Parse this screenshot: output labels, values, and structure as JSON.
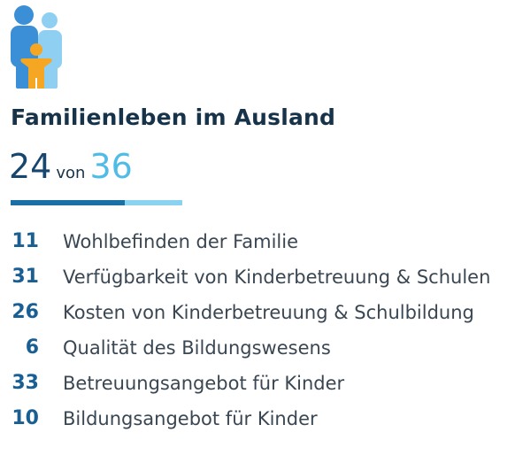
{
  "category": {
    "title": "Familienleben im Ausland",
    "icon": "family-icon",
    "rank": "24",
    "of_label": "von",
    "total": "36",
    "progress_fraction": 0.667
  },
  "items": [
    {
      "rank": "11",
      "label": "Wohlbefinden der Familie"
    },
    {
      "rank": "31",
      "label": "Verfügbarkeit von Kinderbetreuung & Schulen"
    },
    {
      "rank": "26",
      "label": "Kosten von Kinderbetreuung & Schulbildung"
    },
    {
      "rank": "6",
      "label": "Qualität des Bildungswesens"
    },
    {
      "rank": "33",
      "label": "Betreuungsangebot für Kinder"
    },
    {
      "rank": "10",
      "label": "Bildungsangebot für Kinder"
    }
  ],
  "colors": {
    "title": "#17334a",
    "rank_primary": "#17466e",
    "rank_total": "#4fbce8",
    "progress_fill": "#1a6fa5",
    "progress_track": "#8ad2f0",
    "item_rank": "#1a5f94",
    "icon_parent_dark": "#3a8fd7",
    "icon_parent_light": "#8fd0f2",
    "icon_child": "#f5a623"
  }
}
